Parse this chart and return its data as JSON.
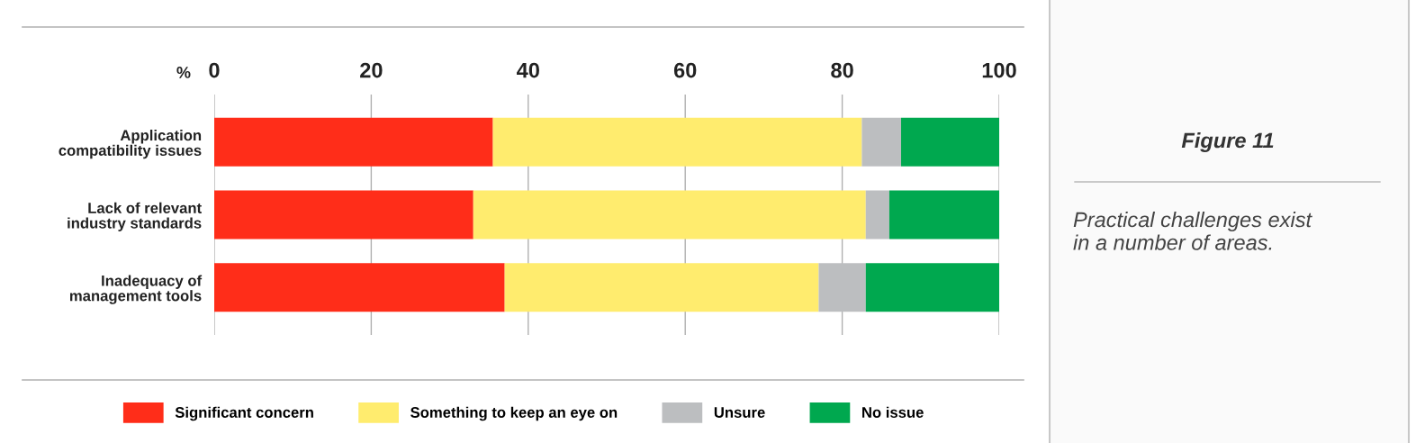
{
  "chart_data": {
    "type": "bar",
    "orientation": "horizontal",
    "stacked": true,
    "categories": [
      "Application\ncompatibility issues",
      "Lack of relevant\nindustry standards",
      "Inadequacy of\nmanagement tools"
    ],
    "series": [
      {
        "name": "Significant concern",
        "color": "#ff2d19",
        "values": [
          35.5,
          33,
          37
        ]
      },
      {
        "name": "Something to keep an eye on",
        "color": "#ffec6e",
        "values": [
          47,
          50,
          40
        ]
      },
      {
        "name": "Unsure",
        "color": "#bcbec0",
        "values": [
          5,
          3,
          6
        ]
      },
      {
        "name": "No issue",
        "color": "#00a84f",
        "values": [
          12.5,
          14,
          17
        ]
      }
    ],
    "xlabel": "%",
    "xlim": [
      0,
      100
    ],
    "xticks": [
      0,
      20,
      40,
      60,
      80,
      100
    ],
    "grid": "x",
    "legend": "bottom",
    "annotations": [
      "Figure 11",
      "Practical challenges exist\nin a number of areas."
    ]
  }
}
